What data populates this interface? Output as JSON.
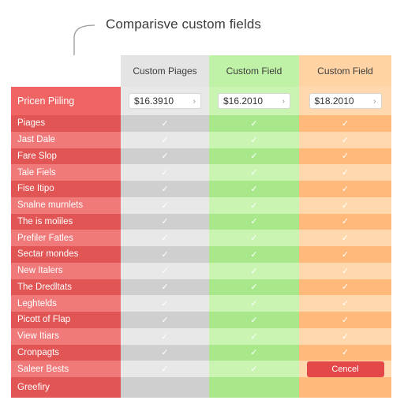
{
  "heading": "Comparisve custom fields",
  "columns": [
    "Custom Piages",
    "Custom Field",
    "Custom Field"
  ],
  "price_row": {
    "label": "Pricen Piiling",
    "values": [
      "$16.3910",
      "$16.2010",
      "$18.2010"
    ]
  },
  "rows": [
    "Piages",
    "Jast Dale",
    "Fare Slop",
    "Tale Fiels",
    "Fise Itipo",
    "Snalne murnlets",
    "The is moliles",
    "Prefiler Fatles",
    "Sectar mondes",
    "New Italers",
    "The Dredltats",
    "Leghtelds",
    "Picott of Flap",
    "View Itiars",
    "Cronpagts",
    "Saleer Bests",
    "Greefiry"
  ],
  "check_icon": "check-icon",
  "cancel_label": "Cencel",
  "colors": {
    "label_dark": "#e25555",
    "label_light": "#f07a7a",
    "col1": "#cfcfcf",
    "col2": "#a9e88a",
    "col3": "#ffb97a",
    "cancel": "#e54848"
  }
}
